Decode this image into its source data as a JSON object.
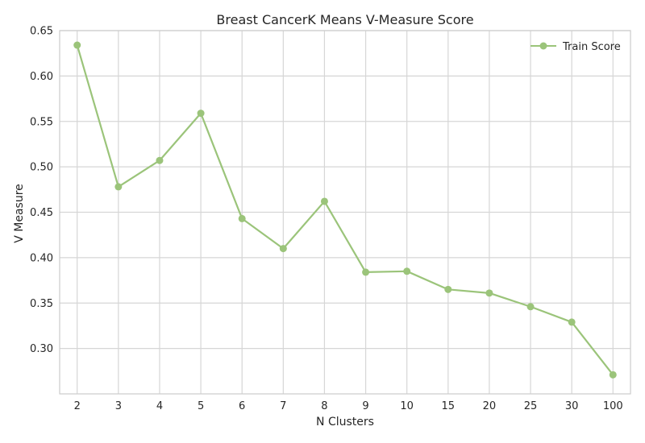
{
  "chart_data": {
    "type": "line",
    "title": "Breast CancerK Means V-Measure Score",
    "xlabel": "N Clusters",
    "ylabel": "V Measure",
    "categories": [
      "2",
      "3",
      "4",
      "5",
      "6",
      "7",
      "8",
      "9",
      "10",
      "15",
      "20",
      "25",
      "30",
      "100"
    ],
    "series": [
      {
        "name": "Train Score",
        "color": "#9bc47a",
        "values": [
          0.634,
          0.478,
          0.507,
          0.559,
          0.443,
          0.41,
          0.462,
          0.384,
          0.385,
          0.365,
          0.361,
          0.346,
          0.329,
          0.271
        ]
      }
    ],
    "ylim": [
      0.25,
      0.65
    ],
    "yticks": [
      "0.30",
      "0.35",
      "0.40",
      "0.45",
      "0.50",
      "0.55",
      "0.60",
      "0.65"
    ],
    "grid": true,
    "legend_position": "top-right",
    "marker": "circle"
  }
}
